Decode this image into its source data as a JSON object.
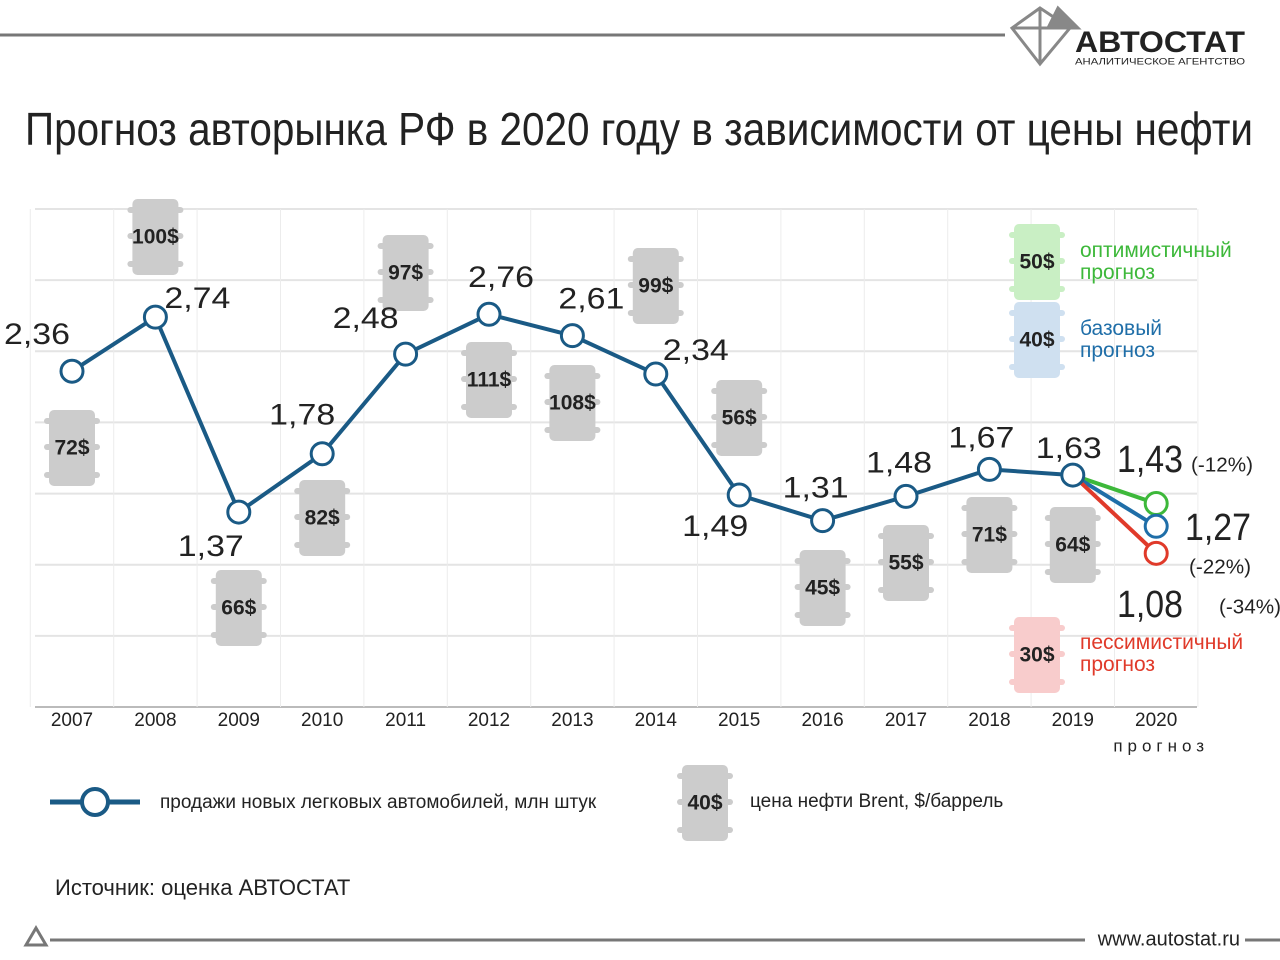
{
  "header": {
    "brand": "АВТОСТАТ",
    "tagline": "АНАЛИТИЧЕСКОЕ АГЕНТСТВО"
  },
  "chart_data": {
    "type": "line",
    "title": "Прогноз авторынка РФ в 2020 году в зависимости от цены нефти",
    "categories": [
      "2007",
      "2008",
      "2009",
      "2010",
      "2011",
      "2012",
      "2013",
      "2014",
      "2015",
      "2016",
      "2017",
      "2018",
      "2019",
      "2020"
    ],
    "forecast_note": "прогноз",
    "ylim": [
      0,
      3.5
    ],
    "yticks": [
      0,
      0.5,
      1,
      1.5,
      2,
      2.5,
      3,
      3.5
    ],
    "grid": true,
    "series": [
      {
        "name": "продажи новых легковых автомобилей, млн штук",
        "color": "#1a5a85",
        "values": [
          2.36,
          2.74,
          1.37,
          1.78,
          2.48,
          2.76,
          2.61,
          2.34,
          1.49,
          1.31,
          1.48,
          1.67,
          1.63,
          null
        ],
        "value_labels": [
          "2,36",
          "2,74",
          "1,37",
          "1,78",
          "2,48",
          "2,76",
          "2,61",
          "2,34",
          "1,49",
          "1,31",
          "1,48",
          "1,67",
          "1,63",
          null
        ]
      }
    ],
    "oil": {
      "name": "цена нефти Brent, $/баррель",
      "legend_sample": "40$",
      "values": [
        72,
        100,
        66,
        82,
        97,
        111,
        108,
        99,
        56,
        45,
        55,
        71,
        64
      ],
      "value_labels": [
        "72$",
        "100$",
        "66$",
        "82$",
        "97$",
        "111$",
        "108$",
        "99$",
        "56$",
        "45$",
        "55$",
        "71$",
        "64$"
      ]
    },
    "forecasts": [
      {
        "name": "оптимистичный прогноз",
        "color": "#3db83a",
        "oil_label": "50$",
        "value": 1.43,
        "value_label": "1,43",
        "change": "(-12%)"
      },
      {
        "name": "базовый прогноз",
        "color": "#1f6ea8",
        "oil_label": "40$",
        "value": 1.27,
        "value_label": "1,27",
        "change": "(-22%)"
      },
      {
        "name": "пессимистичный прогноз",
        "color": "#e03a2a",
        "oil_label": "30$",
        "value": 1.08,
        "value_label": "1,08",
        "change": "(-34%)"
      }
    ]
  },
  "footer": {
    "source": "Источник: оценка АВТОСТАТ",
    "url": "www.autostat.ru"
  }
}
